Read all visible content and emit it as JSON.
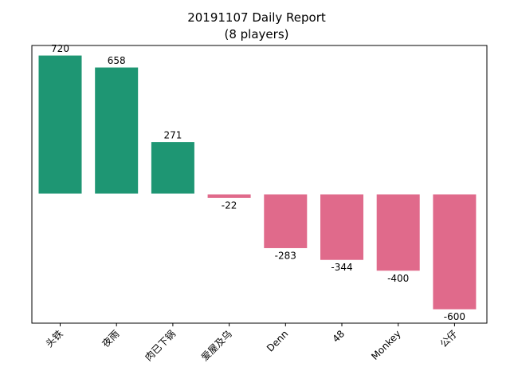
{
  "chart_data": {
    "type": "bar",
    "title": "20191107 Daily Report",
    "subtitle": "(8 players)",
    "categories": [
      "头铁",
      "夜雨",
      "肉已下锅",
      "爱屋及乌",
      "Denn",
      "48",
      "Monkey",
      "公仔"
    ],
    "values": [
      720,
      658,
      271,
      -22,
      -283,
      -344,
      -400,
      -600
    ],
    "ylim": [
      -670,
      770
    ],
    "positive_color": "#1e9673",
    "negative_color": "#e06a8b",
    "grid": false,
    "xtick_rotation": -45
  }
}
